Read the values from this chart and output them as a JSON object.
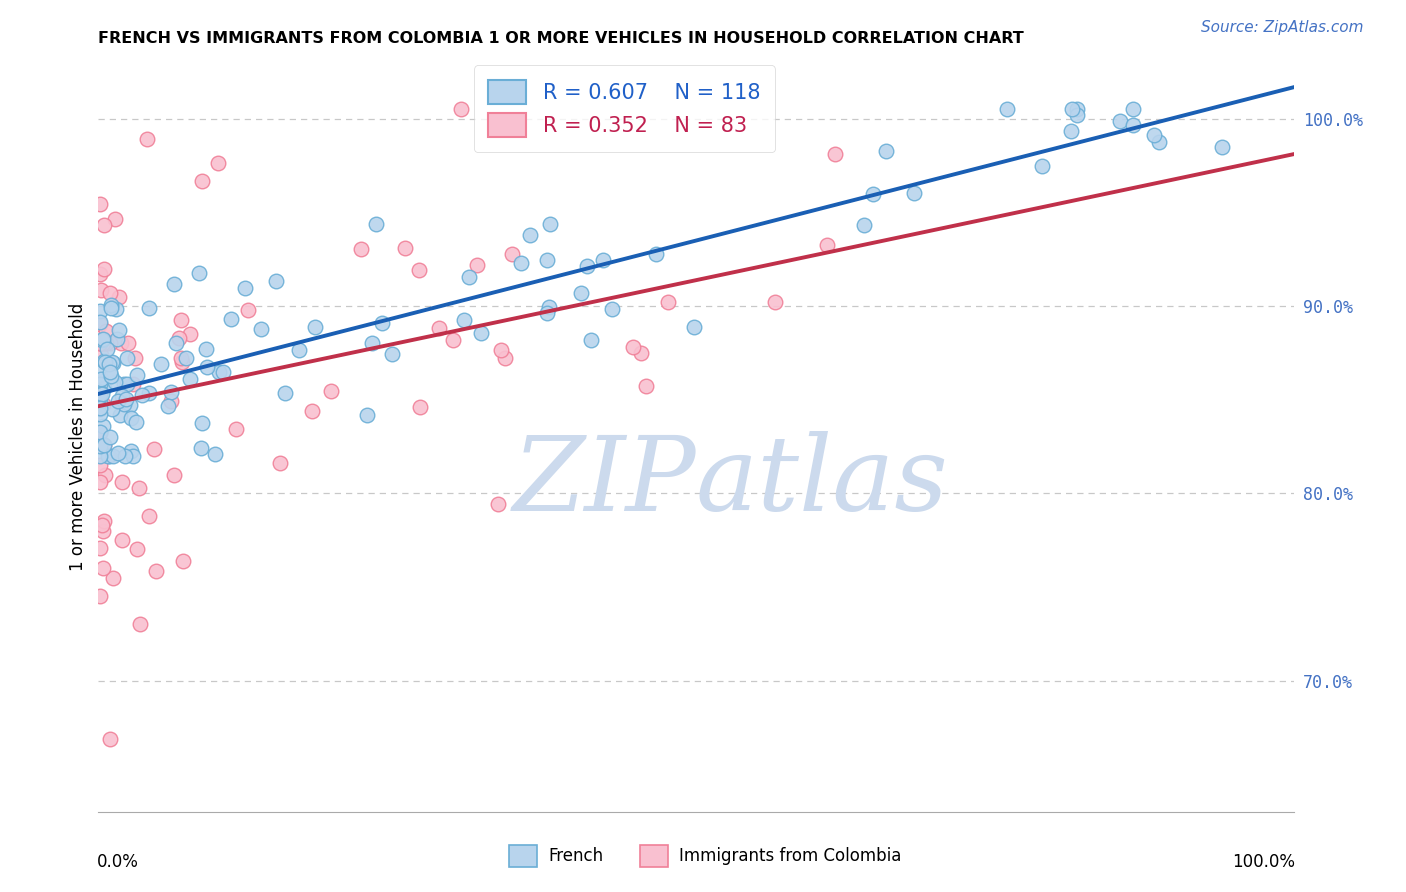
{
  "title": "FRENCH VS IMMIGRANTS FROM COLOMBIA 1 OR MORE VEHICLES IN HOUSEHOLD CORRELATION CHART",
  "source": "Source: ZipAtlas.com",
  "ylabel": "1 or more Vehicles in Household",
  "ytick_labels": [
    "100.0%",
    "90.0%",
    "80.0%",
    "70.0%"
  ],
  "ytick_values": [
    1.0,
    0.9,
    0.8,
    0.7
  ],
  "xlim": [
    0.0,
    1.0
  ],
  "ylim": [
    0.63,
    1.03
  ],
  "legend_french_label": "French",
  "legend_colombia_label": "Immigrants from Colombia",
  "french_R": 0.607,
  "french_N": 118,
  "colombia_R": 0.352,
  "colombia_N": 83,
  "french_color": "#b8d4ed",
  "colombia_color": "#f9c0d0",
  "french_edge_color": "#6aaed6",
  "colombia_edge_color": "#f08098",
  "trendline_french_color": "#1a5fb4",
  "trendline_colombia_color": "#c0304a",
  "watermark_color": "#ccdaed",
  "background_color": "#ffffff",
  "grid_color": "#c8c8c8",
  "title_fontsize": 11.5,
  "axis_fontsize": 12,
  "source_fontsize": 11
}
